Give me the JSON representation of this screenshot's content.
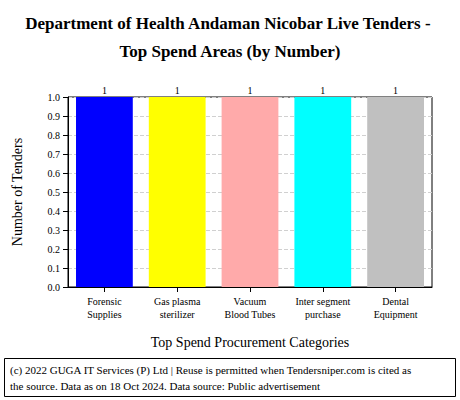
{
  "chart_data": {
    "type": "bar",
    "title": "Department of Health Andaman Nicobar Live Tenders - Top Spend Areas (by Number)",
    "x_label": "Top Spend Procurement Categories",
    "y_label": "Number of Tenders",
    "categories": [
      "Forensic\nSupplies",
      "Gas plasma\nsterilizer",
      "Vacuum\nBlood Tubes",
      "Inter segment\npurchase",
      "Dental\nEquipment"
    ],
    "values": [
      1,
      1,
      1,
      1,
      1
    ],
    "colors": [
      "#0000ff",
      "#ffff00",
      "#ffaaaa",
      "#00ffff",
      "#c0c0c0"
    ],
    "ylim": [
      0,
      1
    ],
    "yticks": [
      {
        "value": 0,
        "label": "0.0"
      },
      0.1,
      0.2,
      0.3,
      0.4,
      0.5,
      0.6,
      0.7,
      0.8,
      0.9,
      {
        "value": 1,
        "label": "1.0"
      }
    ],
    "grid": true,
    "data_labels": true,
    "annotations": [
      "(c) 2022 GUGA IT Services (P) Ltd | Reuse is permitted when Tendersniper.com is cited as the source. Data as on 18 Oct 2024. Data source: Public advertisement"
    ]
  }
}
